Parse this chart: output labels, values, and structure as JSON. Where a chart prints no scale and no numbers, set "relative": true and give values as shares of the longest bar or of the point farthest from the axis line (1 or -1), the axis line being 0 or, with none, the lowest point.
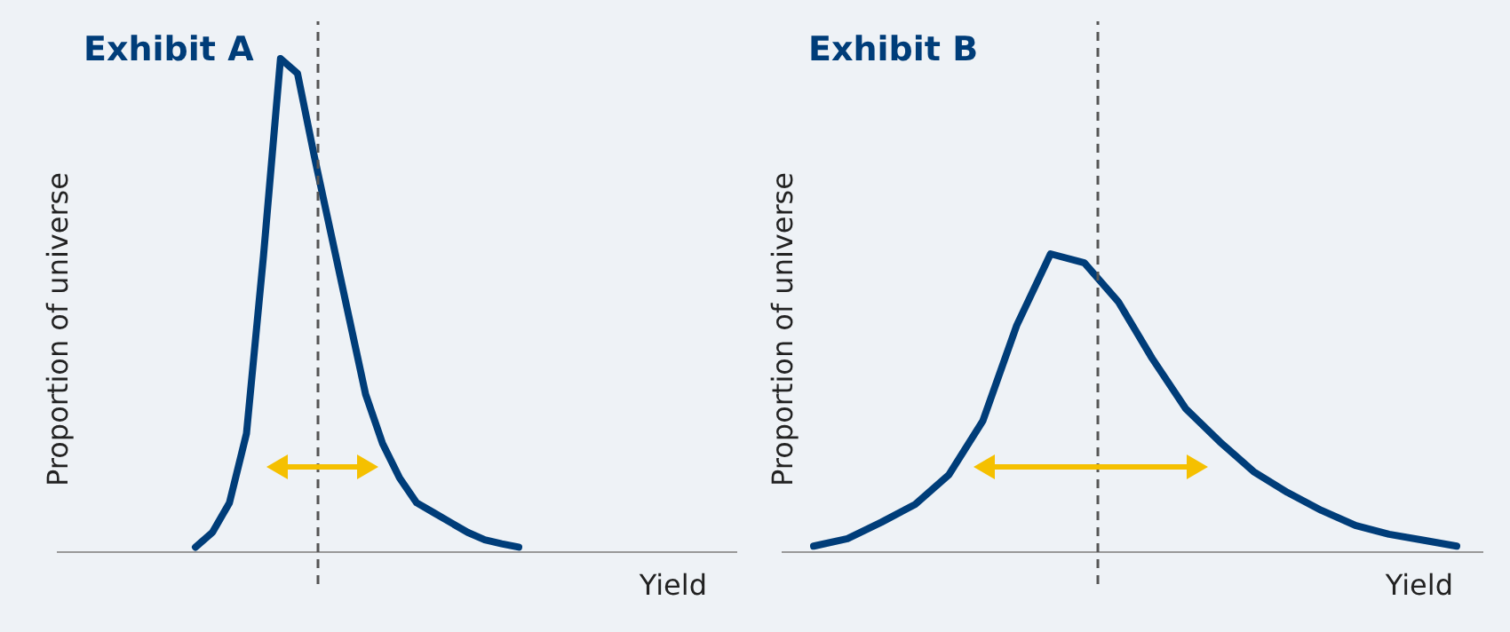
{
  "chart_data": [
    {
      "type": "line",
      "title": "Exhibit A",
      "xlabel": "Yield",
      "ylabel": "Proportion of universe",
      "relative": true,
      "categories": [
        null,
        null,
        null,
        null,
        null,
        null,
        null,
        null,
        null,
        null,
        null,
        null,
        null,
        null,
        null,
        null,
        null,
        null,
        null,
        null
      ],
      "line_style": "solid",
      "series": [
        {
          "color": "#003d79",
          "values": [
            0.01,
            0.04,
            0.1,
            0.24,
            0.6,
            1,
            0.97,
            0.8,
            0.64,
            0.48,
            0.32,
            0.22,
            0.15,
            0.1,
            0.08,
            0.06,
            0.04,
            0.025,
            0.017,
            0.01
          ]
        }
      ]
    },
    {
      "type": "line",
      "title": "Exhibit B",
      "xlabel": "Yield",
      "ylabel": "Proportion of universe",
      "relative": true,
      "categories": [
        null,
        null,
        null,
        null,
        null,
        null,
        null,
        null,
        null,
        null,
        null,
        null,
        null,
        null,
        null,
        null,
        null,
        null,
        null,
        null
      ],
      "line_style": "solid",
      "series": [
        {
          "color": "#003d79",
          "values": [
            0.02,
            0.045,
            0.1,
            0.16,
            0.26,
            0.44,
            0.76,
            1,
            0.97,
            0.84,
            0.65,
            0.48,
            0.37,
            0.27,
            0.2,
            0.14,
            0.09,
            0.06,
            0.04,
            0.02
          ]
        }
      ]
    }
  ]
}
